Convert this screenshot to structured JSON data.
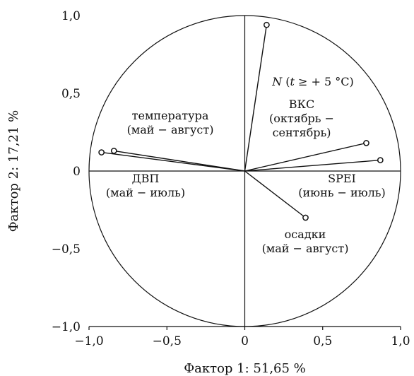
{
  "chart_data": {
    "type": "scatter",
    "xlabel": "Фактор 1: 51,65 %",
    "ylabel": "Фактор 2: 17,21 %",
    "xlim": [
      -1.0,
      1.0
    ],
    "ylim": [
      -1.0,
      1.0
    ],
    "grid": false,
    "unit_circle": true,
    "x_ticks": [
      {
        "value": -1.0,
        "label": "−1,0"
      },
      {
        "value": -0.5,
        "label": "−0,5"
      },
      {
        "value": 0.0,
        "label": "0"
      },
      {
        "value": 0.5,
        "label": "0,5"
      },
      {
        "value": 1.0,
        "label": "1,0"
      }
    ],
    "y_ticks": [
      {
        "value": 1.0,
        "label": "1,0"
      },
      {
        "value": 0.5,
        "label": "0,5"
      },
      {
        "value": 0.0,
        "label": "0"
      },
      {
        "value": -0.5,
        "label": "−0,5"
      },
      {
        "value": -1.0,
        "label": "−1,0"
      }
    ],
    "points": [
      {
        "x": 0.14,
        "y": 0.94
      },
      {
        "x": 0.78,
        "y": 0.18
      },
      {
        "x": 0.87,
        "y": 0.07
      },
      {
        "x": -0.92,
        "y": 0.12
      },
      {
        "x": -0.84,
        "y": 0.13
      },
      {
        "x": 0.39,
        "y": -0.3
      }
    ],
    "labels": [
      {
        "lines": [
          "N (t ≥ + 5 °C)"
        ]
      },
      {
        "lines": [
          "ВКС",
          "(октябрь −",
          "сентябрь)"
        ]
      },
      {
        "lines": [
          "температура",
          "(май − август)"
        ]
      },
      {
        "lines": [
          "ДВП",
          "(май − июль)"
        ]
      },
      {
        "lines": [
          "SPEI",
          "(июнь − июль)"
        ]
      },
      {
        "lines": [
          "осадки",
          "(май − август)"
        ]
      }
    ]
  }
}
